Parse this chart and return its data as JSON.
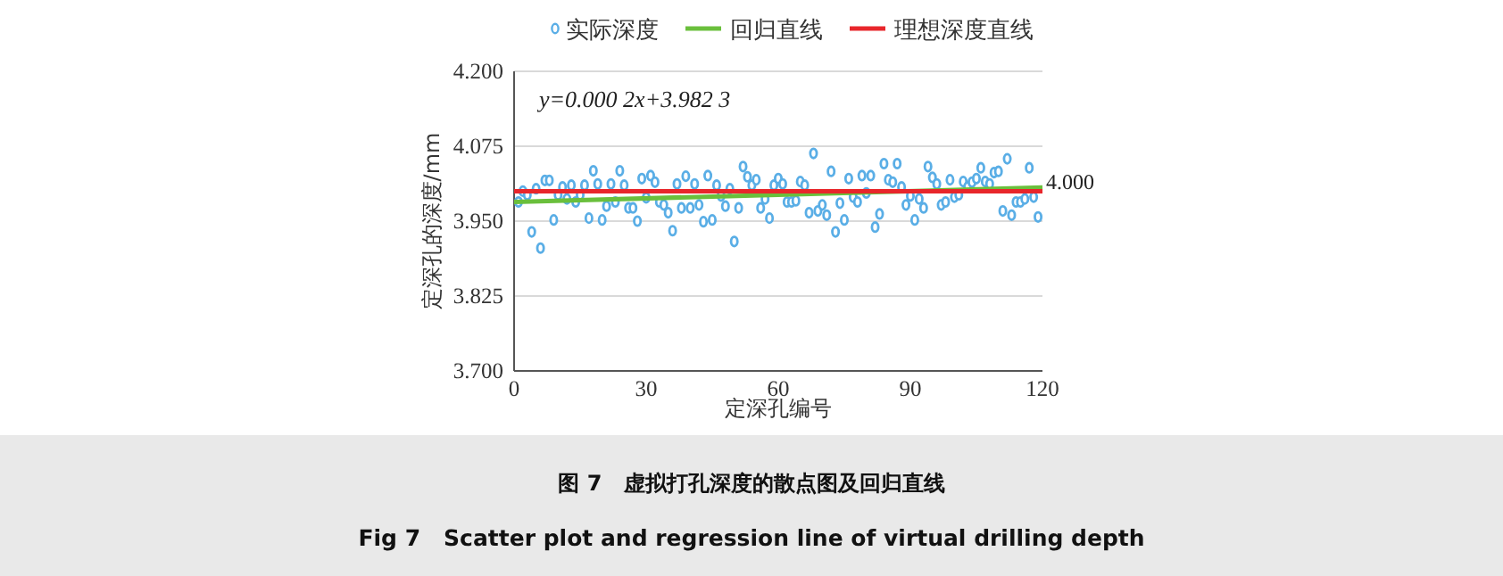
{
  "chart_data": {
    "type": "scatter",
    "xlabel": "定深孔编号",
    "ylabel": "定深孔的深度/mm",
    "xlim": [
      0,
      120
    ],
    "ylim": [
      3.7,
      4.2
    ],
    "xticks": [
      0,
      30,
      60,
      90,
      120
    ],
    "yticks": [
      {
        "value": 3.7,
        "label": "3.700"
      },
      {
        "value": 3.825,
        "label": "3.825"
      },
      {
        "value": 3.95,
        "label": "3.950"
      },
      {
        "value": 4.075,
        "label": "4.075"
      },
      {
        "value": 4.2,
        "label": "4.200"
      }
    ],
    "grid": "y",
    "legend": "top",
    "annotations": [
      "y=0.000 2x+3.982 3",
      "图 7　虚拟打孔深度的散点图及回归直线",
      "Fig 7　Scatter plot and regression line of virtual drilling depth"
    ],
    "series": [
      {
        "name": "实际深度",
        "marker": "circle",
        "color": "#5aaee6",
        "x": [
          1,
          2,
          3,
          4,
          5,
          6,
          7,
          8,
          9,
          10,
          11,
          12,
          13,
          14,
          15,
          16,
          17,
          18,
          19,
          20,
          21,
          22,
          23,
          24,
          25,
          26,
          27,
          28,
          29,
          30,
          31,
          32,
          33,
          34,
          35,
          36,
          37,
          38,
          39,
          40,
          41,
          42,
          43,
          44,
          45,
          46,
          47,
          48,
          49,
          50,
          51,
          52,
          53,
          54,
          55,
          56,
          57,
          58,
          59,
          60,
          61,
          62,
          63,
          64,
          65,
          66,
          67,
          68,
          69,
          70,
          71,
          72,
          73,
          74,
          75,
          76,
          77,
          78,
          79,
          80,
          81,
          82,
          83,
          84,
          85,
          86,
          87,
          88,
          89,
          90,
          91,
          92,
          93,
          94,
          95,
          96,
          97,
          98,
          99,
          100,
          101,
          102,
          103,
          104,
          105,
          106,
          107,
          108,
          109,
          110,
          111,
          112,
          113,
          114,
          115,
          116,
          117,
          118,
          119
        ],
        "values": [
          3.982,
          4.0,
          3.994,
          3.932,
          4.004,
          3.905,
          4.018,
          4.018,
          3.952,
          3.994,
          4.007,
          3.987,
          4.01,
          3.982,
          3.994,
          4.01,
          3.955,
          4.034,
          4.012,
          3.952,
          3.975,
          4.012,
          3.982,
          4.034,
          4.01,
          3.972,
          3.972,
          3.95,
          4.021,
          3.989,
          4.026,
          4.015,
          3.982,
          3.977,
          3.964,
          3.934,
          4.012,
          3.972,
          4.025,
          3.972,
          4.012,
          3.977,
          3.949,
          4.026,
          3.952,
          4.01,
          3.992,
          3.975,
          4.004,
          3.916,
          3.972,
          4.041,
          4.024,
          4.01,
          4.019,
          3.972,
          3.987,
          3.955,
          4.01,
          4.021,
          4.012,
          3.982,
          3.982,
          3.984,
          4.016,
          4.01,
          3.964,
          4.063,
          3.967,
          3.977,
          3.96,
          4.033,
          3.932,
          3.98,
          3.952,
          4.021,
          3.99,
          3.982,
          4.026,
          3.997,
          4.026,
          3.94,
          3.962,
          4.046,
          4.019,
          4.015,
          4.046,
          4.007,
          3.977,
          3.992,
          3.952,
          3.987,
          3.972,
          4.041,
          4.023,
          4.012,
          3.977,
          3.982,
          4.019,
          3.99,
          3.994,
          4.016,
          4.007,
          4.015,
          4.021,
          4.039,
          4.016,
          4.012,
          4.031,
          4.033,
          3.967,
          4.054,
          3.96,
          3.982,
          3.982,
          3.987,
          4.039,
          3.99,
          3.957
        ]
      },
      {
        "name": "回归直线",
        "type": "line",
        "color": "#6abf3c",
        "x": [
          0,
          120
        ],
        "values": [
          3.982,
          4.006
        ],
        "marker": "none"
      },
      {
        "name": "理想深度直线",
        "type": "line",
        "color": "#e8262b",
        "x": [
          0,
          120
        ],
        "values": [
          4.0,
          4.0
        ],
        "marker": "none",
        "value_labels": [
          null,
          "4.000"
        ]
      }
    ]
  }
}
